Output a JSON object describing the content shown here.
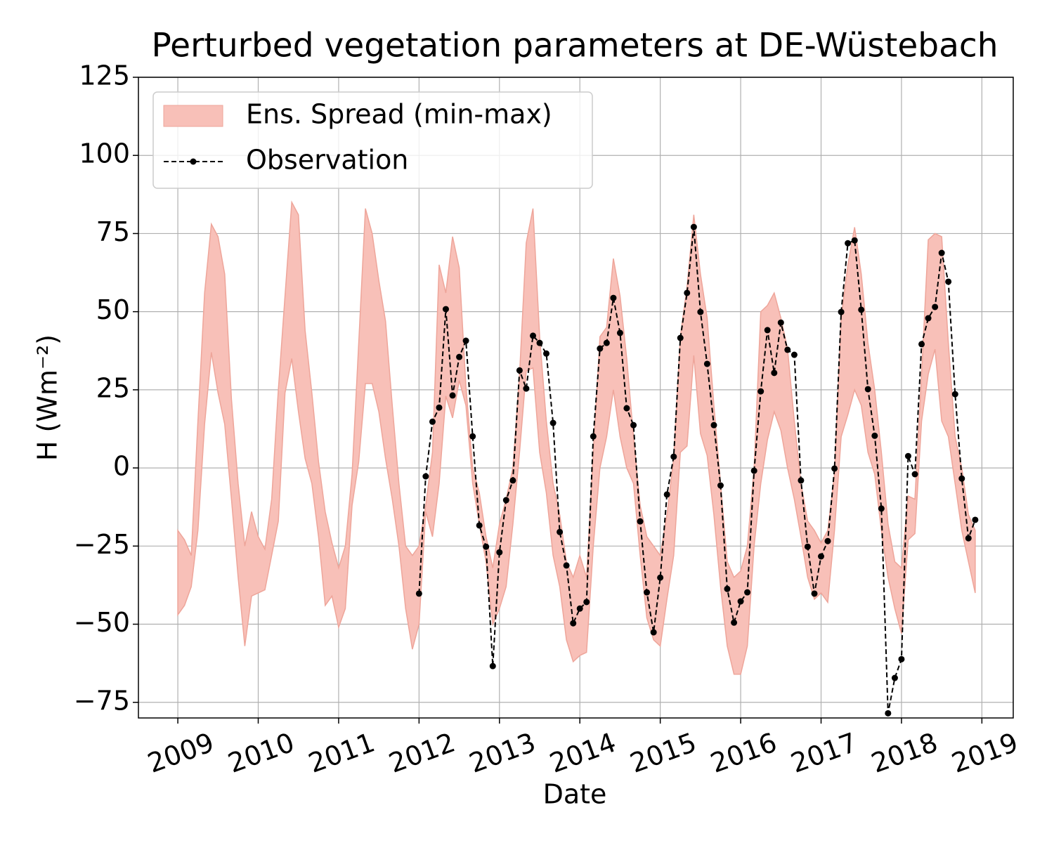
{
  "chart_data": {
    "type": "line",
    "title": "Perturbed vegetation parameters at DE-Wüstebach",
    "x_label": "Date",
    "y_label": "H  (Wm⁻²)",
    "x": [
      2009,
      2009.083,
      2009.167,
      2009.25,
      2009.333,
      2009.417,
      2009.5,
      2009.583,
      2009.667,
      2009.75,
      2009.833,
      2009.917,
      2010,
      2010.083,
      2010.167,
      2010.25,
      2010.333,
      2010.417,
      2010.5,
      2010.583,
      2010.667,
      2010.75,
      2010.833,
      2010.917,
      2011,
      2011.083,
      2011.167,
      2011.25,
      2011.333,
      2011.417,
      2011.5,
      2011.583,
      2011.667,
      2011.75,
      2011.833,
      2011.917,
      2012,
      2012.083,
      2012.167,
      2012.25,
      2012.333,
      2012.417,
      2012.5,
      2012.583,
      2012.667,
      2012.75,
      2012.833,
      2012.917,
      2013,
      2013.083,
      2013.167,
      2013.25,
      2013.333,
      2013.417,
      2013.5,
      2013.583,
      2013.667,
      2013.75,
      2013.833,
      2013.917,
      2014,
      2014.083,
      2014.167,
      2014.25,
      2014.333,
      2014.417,
      2014.5,
      2014.583,
      2014.667,
      2014.75,
      2014.833,
      2014.917,
      2015,
      2015.083,
      2015.167,
      2015.25,
      2015.333,
      2015.417,
      2015.5,
      2015.583,
      2015.667,
      2015.75,
      2015.833,
      2015.917,
      2016,
      2016.083,
      2016.167,
      2016.25,
      2016.333,
      2016.417,
      2016.5,
      2016.583,
      2016.667,
      2016.75,
      2016.833,
      2016.917,
      2017,
      2017.083,
      2017.167,
      2017.25,
      2017.333,
      2017.417,
      2017.5,
      2017.583,
      2017.667,
      2017.75,
      2017.833,
      2017.917,
      2018,
      2018.083,
      2018.167,
      2018.25,
      2018.333,
      2018.417,
      2018.5,
      2018.583,
      2018.667,
      2018.75,
      2018.833,
      2018.917
    ],
    "series": [
      {
        "name": "Ens. Spread (min-max)",
        "color": "#f8c0b8",
        "upper": [
          -20,
          -23,
          -28,
          15,
          56,
          78,
          74,
          62,
          22,
          -5,
          -25,
          -14,
          -22,
          -26,
          -10,
          25,
          55,
          85,
          81,
          44,
          24,
          2,
          -14,
          -24,
          -32,
          -25,
          -2,
          40,
          83,
          75,
          60,
          47,
          20,
          -5,
          -25,
          -28,
          -25,
          -12,
          5,
          65,
          56,
          74,
          64,
          26,
          0,
          -8,
          -22,
          -32,
          -18,
          -10,
          0,
          30,
          72,
          83,
          42,
          15,
          -5,
          -15,
          -30,
          -35,
          -28,
          -35,
          5,
          42,
          45,
          67,
          55,
          35,
          10,
          -12,
          -22,
          -25,
          -28,
          -15,
          3,
          42,
          58,
          81,
          62,
          48,
          20,
          -5,
          -30,
          -35,
          -33,
          -25,
          0,
          50,
          52,
          56,
          48,
          38,
          15,
          -5,
          -17,
          -20,
          -24,
          -20,
          -2,
          48,
          65,
          77,
          62,
          40,
          25,
          5,
          -18,
          -30,
          -32,
          -9,
          -10,
          30,
          73,
          75,
          74,
          40,
          10,
          0,
          -15,
          -20
        ],
        "lower": [
          -47,
          -44,
          -38,
          -20,
          14,
          37,
          24,
          14,
          -10,
          -35,
          -57,
          -41,
          -40,
          -39,
          -28,
          -17,
          24,
          35,
          18,
          3,
          -5,
          -22,
          -44,
          -41,
          -51,
          -45,
          -12,
          2,
          27,
          27,
          18,
          3,
          -10,
          -25,
          -45,
          -58,
          -50,
          -14,
          -22,
          -5,
          23,
          16,
          28,
          20,
          -5,
          -18,
          -30,
          -50,
          -45,
          -38,
          -18,
          5,
          31,
          32,
          5,
          -8,
          -28,
          -38,
          -55,
          -62,
          -60,
          -59,
          -25,
          0,
          10,
          25,
          10,
          0,
          -5,
          -28,
          -48,
          -55,
          -57,
          -42,
          -28,
          5,
          7,
          36,
          11,
          4,
          -15,
          -38,
          -57,
          -66,
          -66,
          -57,
          -25,
          -5,
          9,
          18,
          12,
          0,
          -10,
          -22,
          -35,
          -42,
          -40,
          -43,
          -20,
          10,
          17,
          25,
          20,
          5,
          -2,
          -20,
          -35,
          -45,
          -53,
          -23,
          -21,
          15,
          30,
          38,
          15,
          10,
          -5,
          -20,
          -30,
          -40
        ]
      },
      {
        "name": "Observation",
        "color": "#000000",
        "values": [
          null,
          null,
          null,
          null,
          null,
          null,
          null,
          null,
          null,
          null,
          null,
          null,
          null,
          null,
          null,
          null,
          null,
          null,
          null,
          null,
          null,
          null,
          null,
          null,
          null,
          null,
          null,
          null,
          null,
          null,
          null,
          null,
          null,
          null,
          null,
          null,
          -40.2,
          -2.7,
          14.8,
          19.3,
          50.8,
          23.2,
          35.5,
          40.7,
          10.1,
          -18.4,
          -25.2,
          -63.4,
          -27,
          -10.3,
          -4,
          31.2,
          25.4,
          42.3,
          40,
          36.6,
          14.4,
          -20.5,
          -31.2,
          -49.7,
          -45,
          -42.9,
          10.1,
          38.2,
          40,
          54.4,
          43.2,
          19.1,
          13.7,
          -17.1,
          -39.8,
          -52.6,
          -35.1,
          -8.5,
          3.6,
          41.6,
          56,
          77.1,
          49.9,
          33.3,
          13.7,
          -5.6,
          -38.7,
          -49.5,
          -42.7,
          -39.8,
          -0.9,
          24.5,
          44.1,
          30.4,
          46.5,
          37.8,
          36.2,
          -4,
          -25.2,
          -40.2,
          -28.3,
          -23.4,
          -0.2,
          49.9,
          71.9,
          72.8,
          50.6,
          25.2,
          10.3,
          -13,
          -78.5,
          -67.2,
          -61.2,
          3.8,
          -2,
          39.6,
          47.9,
          51.5,
          68.8,
          59.6,
          23.6,
          -3.4,
          -22.5,
          -16.6
        ]
      }
    ],
    "xlim": [
      2008.51,
      2019.39
    ],
    "xticks": [
      2009,
      2010,
      2011,
      2012,
      2013,
      2014,
      2015,
      2016,
      2017,
      2018,
      2019
    ],
    "ylim": [
      -80,
      125
    ],
    "yticks": [
      {
        "value": -75,
        "label": "−75"
      },
      {
        "value": -50,
        "label": "−50"
      },
      {
        "value": -25,
        "label": "−25"
      },
      0,
      25,
      50,
      75,
      100,
      125
    ],
    "grid": true,
    "legend": "upper left"
  }
}
